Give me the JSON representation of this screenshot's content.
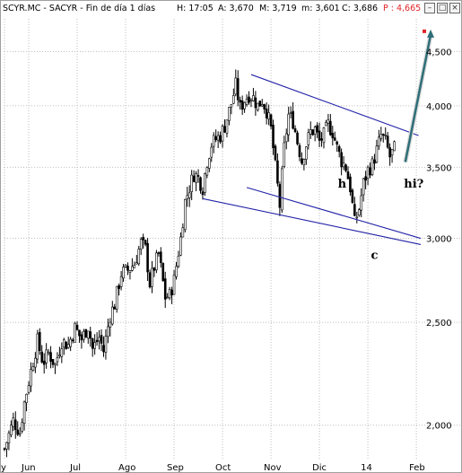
{
  "header": {
    "symbol": "SCYR.MC - SACYR - Fin de día 1 días",
    "time": "H: 17:05",
    "open": "A: 3,670",
    "high": "M: 3,719",
    "low": "m: 3,601",
    "close": "C: 3,686",
    "price": "P : 4,665",
    "price_color": "#e0262a",
    "buttons": [
      "minimize-icon",
      "maximize-icon",
      "close-icon"
    ]
  },
  "chart_data": {
    "type": "candlestick",
    "scale": "log",
    "ylim": [
      1.86,
      4.83
    ],
    "grid": true,
    "y_ticks": [
      {
        "value": 2.0,
        "label": "2,000"
      },
      {
        "value": 2.5,
        "label": "2,500"
      },
      {
        "value": 3.0,
        "label": "3,000"
      },
      {
        "value": 3.5,
        "label": "3,500"
      },
      {
        "value": 4.0,
        "label": "4,000"
      },
      {
        "value": 4.5,
        "label": "4,500"
      }
    ],
    "x_ticks": [
      {
        "label": "y",
        "day": 0
      },
      {
        "label": "Jun",
        "day": 22
      },
      {
        "label": "Jul",
        "day": 66
      },
      {
        "label": "Ago",
        "day": 110
      },
      {
        "label": "Sep",
        "day": 154
      },
      {
        "label": "Oct",
        "day": 198
      },
      {
        "label": "Nov",
        "day": 242
      },
      {
        "label": "Dic",
        "day": 286
      },
      {
        "label": "14",
        "day": 330
      },
      {
        "label": "Feb",
        "day": 374
      }
    ],
    "anchors": [
      [
        0,
        1.9
      ],
      [
        8,
        2.02
      ],
      [
        14,
        1.97
      ],
      [
        18,
        2.1
      ],
      [
        24,
        2.25
      ],
      [
        30,
        2.4
      ],
      [
        35,
        2.29
      ],
      [
        40,
        2.34
      ],
      [
        46,
        2.28
      ],
      [
        52,
        2.4
      ],
      [
        58,
        2.38
      ],
      [
        64,
        2.47
      ],
      [
        70,
        2.41
      ],
      [
        76,
        2.48
      ],
      [
        80,
        2.36
      ],
      [
        86,
        2.42
      ],
      [
        90,
        2.35
      ],
      [
        96,
        2.54
      ],
      [
        100,
        2.6
      ],
      [
        106,
        2.78
      ],
      [
        112,
        2.8
      ],
      [
        118,
        2.84
      ],
      [
        124,
        2.97
      ],
      [
        128,
        2.93
      ],
      [
        132,
        2.72
      ],
      [
        136,
        2.82
      ],
      [
        140,
        2.9
      ],
      [
        146,
        2.64
      ],
      [
        150,
        2.65
      ],
      [
        154,
        2.74
      ],
      [
        160,
        3.0
      ],
      [
        164,
        3.25
      ],
      [
        168,
        3.35
      ],
      [
        172,
        3.45
      ],
      [
        176,
        3.42
      ],
      [
        180,
        3.35
      ],
      [
        184,
        3.55
      ],
      [
        188,
        3.68
      ],
      [
        192,
        3.72
      ],
      [
        196,
        3.75
      ],
      [
        200,
        3.83
      ],
      [
        206,
        4.02
      ],
      [
        210,
        4.18
      ],
      [
        214,
        3.98
      ],
      [
        218,
        4.05
      ],
      [
        222,
        4.1
      ],
      [
        226,
        4.07
      ],
      [
        230,
        4.0
      ],
      [
        234,
        4.05
      ],
      [
        238,
        3.96
      ],
      [
        242,
        3.8
      ],
      [
        246,
        3.5
      ],
      [
        250,
        3.22
      ],
      [
        254,
        3.65
      ],
      [
        258,
        3.92
      ],
      [
        262,
        3.87
      ],
      [
        266,
        3.7
      ],
      [
        270,
        3.55
      ],
      [
        274,
        3.68
      ],
      [
        278,
        3.78
      ],
      [
        282,
        3.8
      ],
      [
        286,
        3.7
      ],
      [
        290,
        3.75
      ],
      [
        294,
        3.84
      ],
      [
        298,
        3.78
      ],
      [
        302,
        3.65
      ],
      [
        306,
        3.55
      ],
      [
        310,
        3.5
      ],
      [
        314,
        3.35
      ],
      [
        318,
        3.1
      ],
      [
        322,
        3.2
      ],
      [
        326,
        3.38
      ],
      [
        330,
        3.48
      ],
      [
        334,
        3.52
      ],
      [
        338,
        3.63
      ],
      [
        342,
        3.75
      ],
      [
        346,
        3.7
      ],
      [
        350,
        3.58
      ],
      [
        354,
        3.64
      ]
    ],
    "trendlines": [
      {
        "name": "upper",
        "from": [
          224,
          4.28
        ],
        "to": [
          376,
          3.75
        ],
        "color": "#2323a8"
      },
      {
        "name": "lower-1",
        "from": [
          180,
          3.27
        ],
        "to": [
          378,
          2.96
        ],
        "color": "#2323a8"
      },
      {
        "name": "lower-2",
        "from": [
          220,
          3.35
        ],
        "to": [
          378,
          3.0
        ],
        "color": "#2323a8"
      }
    ],
    "projection": {
      "from": [
        364,
        3.54
      ],
      "to": [
        387,
        4.665
      ],
      "color": "#2f6e78"
    },
    "annotations": [
      {
        "label": "h",
        "day": 306,
        "value": 3.35
      },
      {
        "label": "c",
        "day": 336,
        "value": 2.87
      },
      {
        "label": "hi?",
        "day": 366,
        "value": 3.35
      }
    ]
  }
}
